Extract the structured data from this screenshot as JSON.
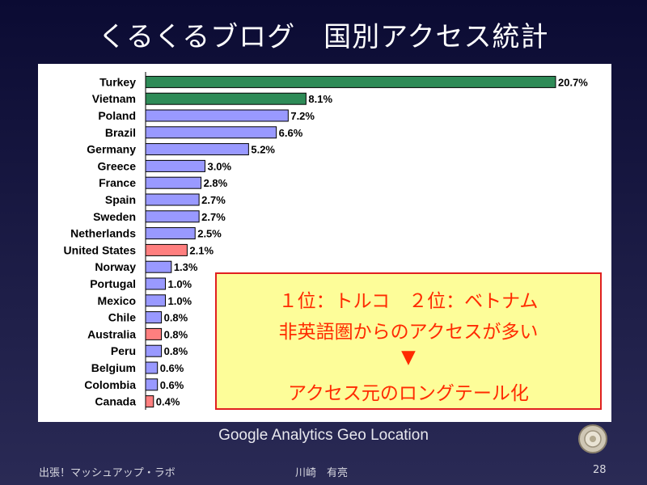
{
  "slide": {
    "title": "くるくるブログ　国別アクセス統計",
    "caption": "Google Analytics Geo Location",
    "footer_left": "出張！マッシュアップ・ラボ",
    "footer_center": "川崎　有亮",
    "page_number": "28"
  },
  "callout": {
    "line1": "１位：トルコ　２位：ベトナム",
    "line2": "非英語圏からのアクセスが多い",
    "arrow": "▼",
    "line3": "アクセス元のロングテール化"
  },
  "colors": {
    "green": "#2e8b57",
    "blue": "#9999ff",
    "red": "#ff7f7f"
  },
  "chart_data": {
    "type": "bar",
    "orientation": "horizontal",
    "title": "",
    "xlabel": "",
    "ylabel": "",
    "xlim": [
      0,
      20.7
    ],
    "grid": false,
    "legend": "none",
    "categories": [
      "Turkey",
      "Vietnam",
      "Poland",
      "Brazil",
      "Germany",
      "Greece",
      "France",
      "Spain",
      "Sweden",
      "Netherlands",
      "United States",
      "Norway",
      "Portugal",
      "Mexico",
      "Chile",
      "Australia",
      "Peru",
      "Belgium",
      "Colombia",
      "Canada"
    ],
    "values": [
      20.7,
      8.1,
      7.2,
      6.6,
      5.2,
      3.0,
      2.8,
      2.7,
      2.7,
      2.5,
      2.1,
      1.3,
      1.0,
      1.0,
      0.8,
      0.8,
      0.8,
      0.6,
      0.6,
      0.4
    ],
    "labels": [
      "20.7%",
      "8.1%",
      "7.2%",
      "6.6%",
      "5.2%",
      "3.0%",
      "2.8%",
      "2.7%",
      "2.7%",
      "2.5%",
      "2.1%",
      "1.3%",
      "1.0%",
      "1.0%",
      "0.8%",
      "0.8%",
      "0.8%",
      "0.6%",
      "0.6%",
      "0.4%"
    ],
    "bar_colors": [
      "green",
      "green",
      "blue",
      "blue",
      "blue",
      "blue",
      "blue",
      "blue",
      "blue",
      "blue",
      "red",
      "blue",
      "blue",
      "blue",
      "blue",
      "red",
      "blue",
      "blue",
      "blue",
      "red"
    ]
  }
}
